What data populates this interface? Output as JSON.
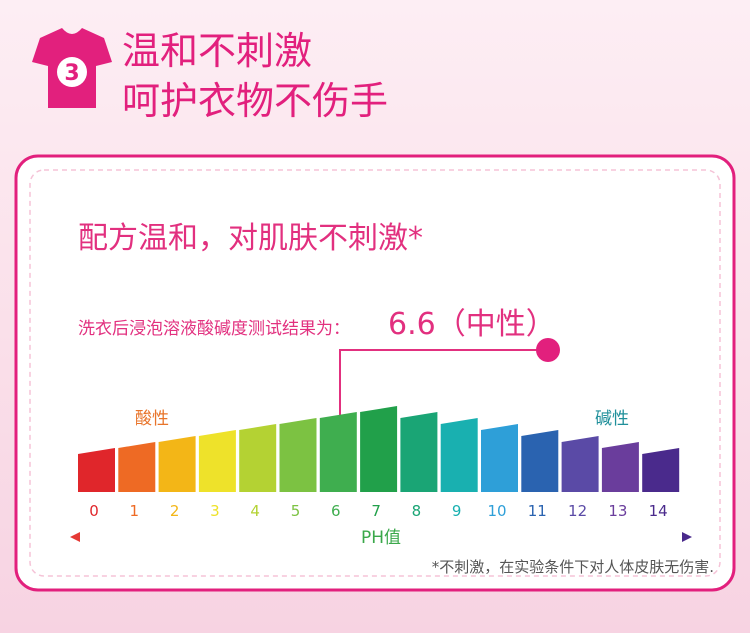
{
  "header": {
    "badge": "3",
    "title_lines": [
      "温和不刺激",
      "呵护衣物不伤手"
    ]
  },
  "card": {
    "heading": "配方温和，对肌肤不刺激*",
    "test_label": "洗衣后浸泡溶液酸碱度测试结果为：",
    "result": "6.6（中性）",
    "acid_label": "酸性",
    "alkaline_label": "碱性",
    "scale_labels": [
      "0",
      "1",
      "2",
      "3",
      "4",
      "5",
      "6",
      "7",
      "8",
      "9",
      "10",
      "11",
      "12",
      "13",
      "14"
    ],
    "axis_label": "PH值",
    "footnote": "*不刺激，在实验条件下对人体皮肤无伤害."
  }
}
